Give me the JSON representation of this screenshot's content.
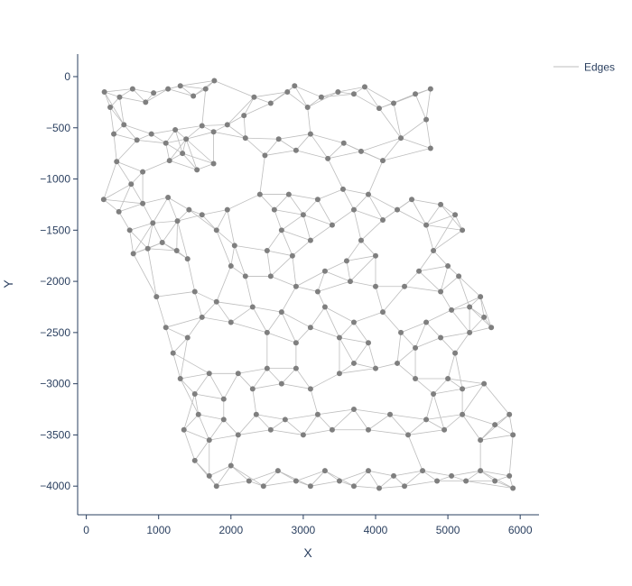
{
  "chart_data": {
    "type": "scatter",
    "title": "",
    "xlabel": "X",
    "ylabel": "Y",
    "xlim": [
      -120,
      6260
    ],
    "ylim": [
      -4280,
      220
    ],
    "x_ticks": [
      0,
      1000,
      2000,
      3000,
      4000,
      5000,
      6000
    ],
    "y_ticks": [
      0,
      -500,
      -1000,
      -1500,
      -2000,
      -2500,
      -3000,
      -3500,
      -4000
    ],
    "x_tick_labels": [
      "0",
      "1000",
      "2000",
      "3000",
      "4000",
      "5000",
      "6000"
    ],
    "y_tick_labels": [
      "0",
      "−500",
      "−1000",
      "−1500",
      "−2000",
      "−2500",
      "−3000",
      "−3500",
      "−4000"
    ],
    "grid": false,
    "legend": {
      "placement": "top-right",
      "entries": [
        "Edges"
      ]
    },
    "colors": {
      "edges": "#bdbdbd",
      "nodes": "#7f7f7f",
      "axis": "#2a3f5f"
    },
    "series": [
      {
        "name": "Edges",
        "kind": "lines"
      },
      {
        "kind": "markers",
        "points": [
          [
            250,
            -150
          ],
          [
            330,
            -300
          ],
          [
            460,
            -200
          ],
          [
            640,
            -120
          ],
          [
            820,
            -250
          ],
          [
            930,
            -160
          ],
          [
            1130,
            -120
          ],
          [
            1300,
            -90
          ],
          [
            1480,
            -190
          ],
          [
            1650,
            -120
          ],
          [
            1770,
            -40
          ],
          [
            380,
            -560
          ],
          [
            520,
            -470
          ],
          [
            700,
            -620
          ],
          [
            900,
            -560
          ],
          [
            1100,
            -650
          ],
          [
            1230,
            -520
          ],
          [
            1380,
            -610
          ],
          [
            1600,
            -480
          ],
          [
            1760,
            -540
          ],
          [
            1950,
            -470
          ],
          [
            2180,
            -380
          ],
          [
            2320,
            -200
          ],
          [
            2550,
            -260
          ],
          [
            2780,
            -150
          ],
          [
            2880,
            -90
          ],
          [
            3060,
            -300
          ],
          [
            3250,
            -200
          ],
          [
            3480,
            -150
          ],
          [
            3700,
            -170
          ],
          [
            3850,
            -100
          ],
          [
            4050,
            -310
          ],
          [
            4250,
            -260
          ],
          [
            4550,
            -170
          ],
          [
            4760,
            -120
          ],
          [
            420,
            -830
          ],
          [
            620,
            -1050
          ],
          [
            780,
            -930
          ],
          [
            1150,
            -820
          ],
          [
            1330,
            -750
          ],
          [
            1530,
            -910
          ],
          [
            1760,
            -850
          ],
          [
            2200,
            -600
          ],
          [
            2470,
            -770
          ],
          [
            2660,
            -610
          ],
          [
            2900,
            -720
          ],
          [
            3100,
            -560
          ],
          [
            3340,
            -800
          ],
          [
            3560,
            -650
          ],
          [
            3800,
            -730
          ],
          [
            4100,
            -820
          ],
          [
            4350,
            -600
          ],
          [
            4700,
            -420
          ],
          [
            4760,
            -700
          ],
          [
            240,
            -1200
          ],
          [
            450,
            -1320
          ],
          [
            600,
            -1500
          ],
          [
            780,
            -1240
          ],
          [
            920,
            -1430
          ],
          [
            1130,
            -1180
          ],
          [
            1260,
            -1410
          ],
          [
            650,
            -1730
          ],
          [
            850,
            -1680
          ],
          [
            1050,
            -1620
          ],
          [
            1250,
            -1700
          ],
          [
            1400,
            -1780
          ],
          [
            1420,
            -1300
          ],
          [
            1600,
            -1350
          ],
          [
            1800,
            -1500
          ],
          [
            1950,
            -1300
          ],
          [
            2050,
            -1650
          ],
          [
            2000,
            -1850
          ],
          [
            2400,
            -1150
          ],
          [
            2600,
            -1300
          ],
          [
            2800,
            -1150
          ],
          [
            3000,
            -1350
          ],
          [
            2700,
            -1500
          ],
          [
            2500,
            -1700
          ],
          [
            2850,
            -1750
          ],
          [
            3100,
            -1600
          ],
          [
            3300,
            -1900
          ],
          [
            3200,
            -1200
          ],
          [
            3400,
            -1450
          ],
          [
            3550,
            -1100
          ],
          [
            3700,
            -1300
          ],
          [
            3900,
            -1150
          ],
          [
            4100,
            -1400
          ],
          [
            3800,
            -1600
          ],
          [
            3600,
            -1800
          ],
          [
            4000,
            -1750
          ],
          [
            4300,
            -1300
          ],
          [
            4500,
            -1200
          ],
          [
            4700,
            -1450
          ],
          [
            4900,
            -1250
          ],
          [
            5100,
            -1350
          ],
          [
            5200,
            -1500
          ],
          [
            4800,
            -1700
          ],
          [
            5000,
            -1850
          ],
          [
            5150,
            -1950
          ],
          [
            4600,
            -1900
          ],
          [
            2200,
            -1950
          ],
          [
            2550,
            -1950
          ],
          [
            2900,
            -2050
          ],
          [
            3200,
            -2100
          ],
          [
            3650,
            -2000
          ],
          [
            4000,
            -2050
          ],
          [
            4400,
            -2050
          ],
          [
            4900,
            -2100
          ],
          [
            5050,
            -2280
          ],
          [
            970,
            -2150
          ],
          [
            1100,
            -2450
          ],
          [
            1200,
            -2700
          ],
          [
            1400,
            -2550
          ],
          [
            1600,
            -2350
          ],
          [
            1500,
            -2100
          ],
          [
            1800,
            -2200
          ],
          [
            2000,
            -2400
          ],
          [
            2300,
            -2250
          ],
          [
            2500,
            -2500
          ],
          [
            2700,
            -2300
          ],
          [
            2900,
            -2600
          ],
          [
            3100,
            -2450
          ],
          [
            3300,
            -2250
          ],
          [
            3500,
            -2550
          ],
          [
            3700,
            -2400
          ],
          [
            3900,
            -2600
          ],
          [
            4100,
            -2300
          ],
          [
            4350,
            -2500
          ],
          [
            4550,
            -2650
          ],
          [
            4700,
            -2400
          ],
          [
            4900,
            -2550
          ],
          [
            5100,
            -2700
          ],
          [
            5300,
            -2500
          ],
          [
            5500,
            -2350
          ],
          [
            5450,
            -2150
          ],
          [
            5600,
            -2450
          ],
          [
            5300,
            -2250
          ],
          [
            1300,
            -2950
          ],
          [
            1500,
            -3100
          ],
          [
            1700,
            -2900
          ],
          [
            1900,
            -3150
          ],
          [
            2100,
            -2900
          ],
          [
            2300,
            -3050
          ],
          [
            2500,
            -2850
          ],
          [
            2700,
            -3000
          ],
          [
            2900,
            -2850
          ],
          [
            3100,
            -3050
          ],
          [
            3500,
            -2900
          ],
          [
            3700,
            -2800
          ],
          [
            4000,
            -2850
          ],
          [
            4300,
            -2800
          ],
          [
            4550,
            -2950
          ],
          [
            4800,
            -3100
          ],
          [
            5000,
            -2950
          ],
          [
            5200,
            -3050
          ],
          [
            5500,
            -3000
          ],
          [
            1350,
            -3450
          ],
          [
            1550,
            -3300
          ],
          [
            1700,
            -3550
          ],
          [
            1900,
            -3350
          ],
          [
            2100,
            -3500
          ],
          [
            2350,
            -3300
          ],
          [
            2550,
            -3450
          ],
          [
            2750,
            -3350
          ],
          [
            3000,
            -3500
          ],
          [
            3200,
            -3300
          ],
          [
            3400,
            -3450
          ],
          [
            3700,
            -3250
          ],
          [
            3900,
            -3450
          ],
          [
            4200,
            -3300
          ],
          [
            4450,
            -3500
          ],
          [
            4700,
            -3350
          ],
          [
            4950,
            -3450
          ],
          [
            5200,
            -3300
          ],
          [
            5450,
            -3550
          ],
          [
            5650,
            -3400
          ],
          [
            5850,
            -3300
          ],
          [
            5900,
            -3500
          ],
          [
            1500,
            -3750
          ],
          [
            1700,
            -3900
          ],
          [
            1800,
            -4000
          ],
          [
            2000,
            -3800
          ],
          [
            2250,
            -3950
          ],
          [
            2450,
            -4000
          ],
          [
            2650,
            -3850
          ],
          [
            2900,
            -3950
          ],
          [
            3100,
            -4000
          ],
          [
            3300,
            -3850
          ],
          [
            3500,
            -3950
          ],
          [
            3700,
            -4000
          ],
          [
            3900,
            -3850
          ],
          [
            4050,
            -4020
          ],
          [
            4250,
            -3900
          ],
          [
            4400,
            -4000
          ],
          [
            4650,
            -3850
          ],
          [
            4850,
            -3950
          ],
          [
            5050,
            -3900
          ],
          [
            5250,
            -3950
          ],
          [
            5450,
            -3850
          ],
          [
            5650,
            -3950
          ],
          [
            5850,
            -3900
          ],
          [
            5900,
            -4020
          ]
        ]
      }
    ]
  }
}
